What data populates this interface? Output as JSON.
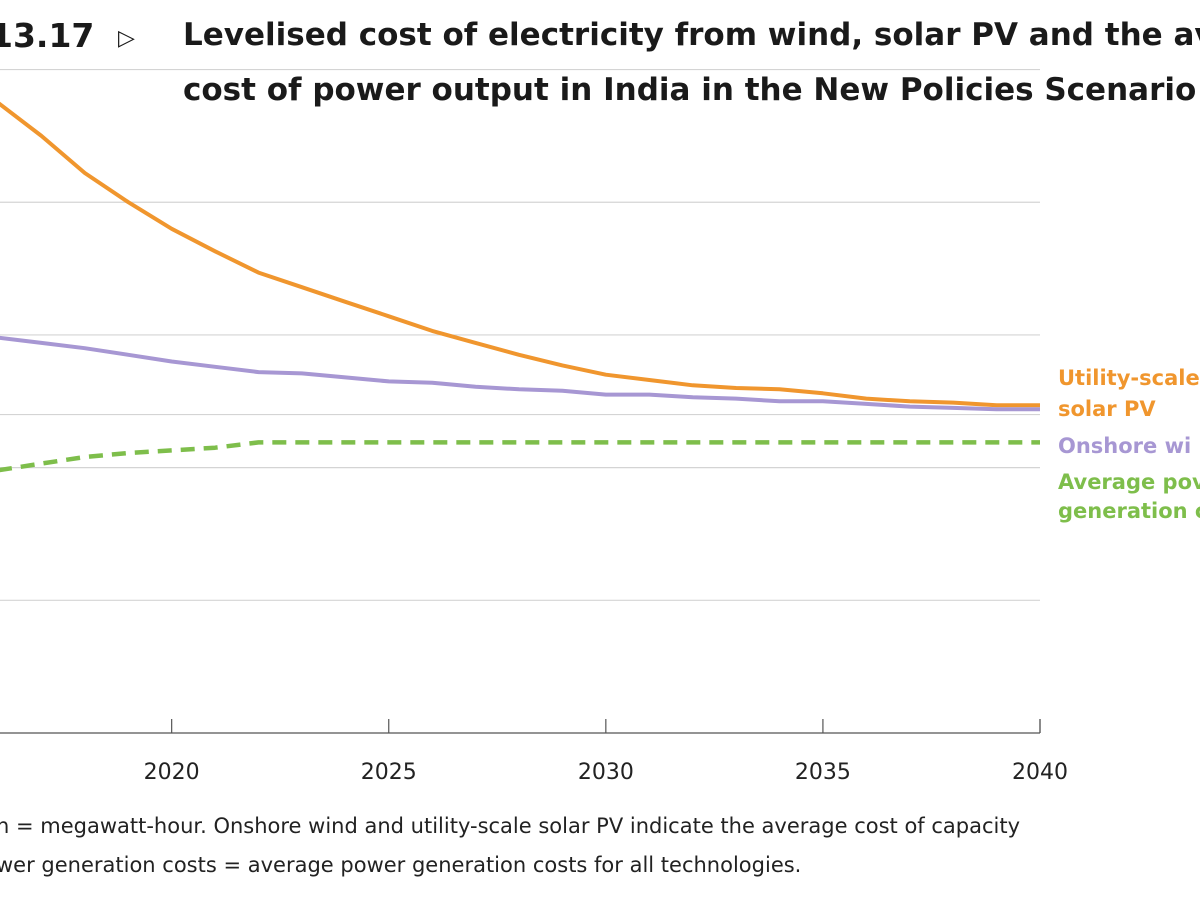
{
  "figure": {
    "number": "13.17",
    "marker": "▷",
    "title_line1": "Levelised cost of electricity from wind, solar PV and the av",
    "title_line2": "cost of power output in India in the New Policies Scenario"
  },
  "notes": {
    "line1": "h = megawatt-hour. Onshore wind and utility-scale solar PV indicate the average cost of capacity",
    "line2": "wer generation costs = average power generation costs for all technologies."
  },
  "colors": {
    "solar": "#F0962E",
    "wind": "#A797D3",
    "average": "#7EBE4B",
    "grid": "#d4d4d4"
  },
  "chart_data": {
    "type": "line",
    "title": "Levelised cost of electricity from wind, solar PV and the average cost of power output in India in the New Policies Scenario",
    "xlabel": "",
    "ylabel": "",
    "xlim": [
      2016,
      2040
    ],
    "ylim": [
      0,
      5.2
    ],
    "grid": true,
    "gridlines_y": [
      1,
      2,
      2.4,
      3,
      4,
      5
    ],
    "x_ticks": [
      2020,
      2025,
      2030,
      2035,
      2040
    ],
    "x_tick_labels": [
      "2020",
      "2025",
      "2030",
      "2035",
      "2040"
    ],
    "series": [
      {
        "name": "Utility-scale solar PV",
        "label_lines": [
          "Utility-scale",
          "solar PV"
        ],
        "color_key": "solar",
        "style": "solid",
        "x": [
          2016,
          2017,
          2018,
          2019,
          2020,
          2021,
          2022,
          2023,
          2024,
          2025,
          2026,
          2027,
          2028,
          2029,
          2030,
          2031,
          2032,
          2033,
          2034,
          2035,
          2036,
          2037,
          2038,
          2039,
          2040
        ],
        "values": [
          4.75,
          4.5,
          4.22,
          4.0,
          3.8,
          3.63,
          3.47,
          3.36,
          3.25,
          3.14,
          3.03,
          2.94,
          2.85,
          2.77,
          2.7,
          2.66,
          2.62,
          2.6,
          2.59,
          2.56,
          2.52,
          2.5,
          2.49,
          2.47,
          2.47
        ]
      },
      {
        "name": "Onshore wind",
        "label_lines": [
          "Onshore wi"
        ],
        "color_key": "wind",
        "style": "solid",
        "x": [
          2016,
          2017,
          2018,
          2019,
          2020,
          2021,
          2022,
          2023,
          2024,
          2025,
          2026,
          2027,
          2028,
          2029,
          2030,
          2031,
          2032,
          2033,
          2034,
          2035,
          2036,
          2037,
          2038,
          2039,
          2040
        ],
        "values": [
          2.98,
          2.94,
          2.9,
          2.85,
          2.8,
          2.76,
          2.72,
          2.71,
          2.68,
          2.65,
          2.64,
          2.61,
          2.59,
          2.58,
          2.55,
          2.55,
          2.53,
          2.52,
          2.5,
          2.5,
          2.48,
          2.46,
          2.45,
          2.44,
          2.44
        ]
      },
      {
        "name": "Average power generation costs",
        "label_lines": [
          "Average pov",
          "generation c"
        ],
        "color_key": "average",
        "style": "dashed",
        "x": [
          2016,
          2017,
          2018,
          2019,
          2020,
          2021,
          2022,
          2023,
          2024,
          2025,
          2026,
          2027,
          2028,
          2029,
          2030,
          2031,
          2032,
          2033,
          2034,
          2035,
          2036,
          2037,
          2038,
          2039,
          2040
        ],
        "values": [
          1.98,
          2.03,
          2.08,
          2.11,
          2.13,
          2.15,
          2.19,
          2.19,
          2.19,
          2.19,
          2.19,
          2.19,
          2.19,
          2.19,
          2.19,
          2.19,
          2.19,
          2.19,
          2.19,
          2.19,
          2.19,
          2.19,
          2.19,
          2.19,
          2.19
        ]
      }
    ]
  }
}
